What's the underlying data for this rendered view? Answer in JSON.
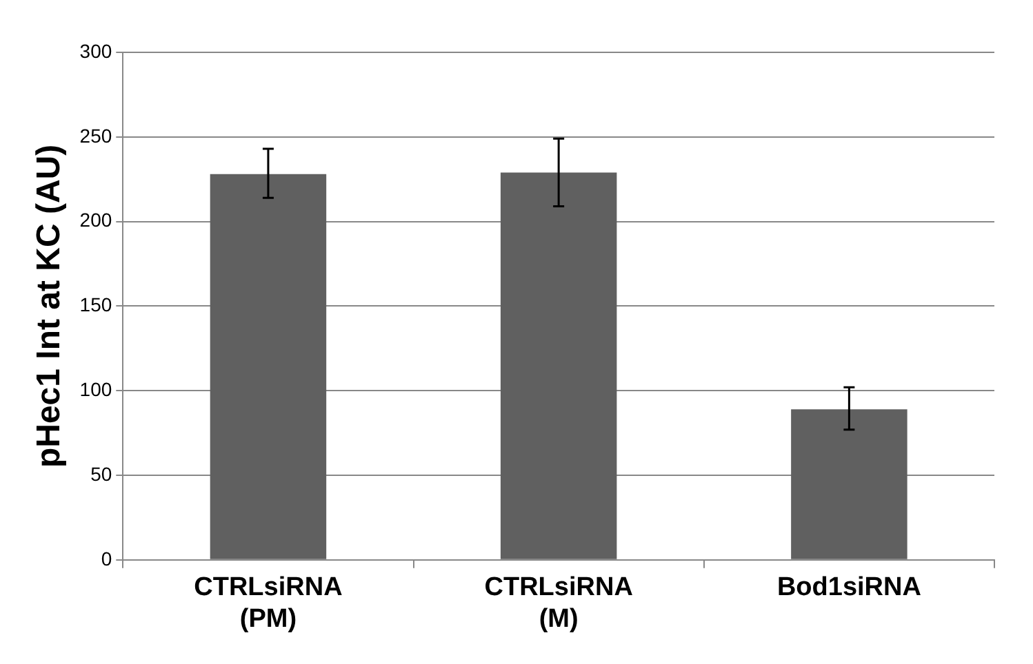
{
  "chart_data": {
    "type": "bar",
    "ylabel": "pHec1 Int at KC (AU)",
    "categories": [
      "CTRLsiRNA (PM)",
      "CTRLsiRNA (M)",
      "Bod1siRNA"
    ],
    "values": [
      228,
      229,
      89
    ],
    "color": "#606060",
    "errors": [
      [
        214,
        243
      ],
      [
        209,
        249
      ],
      [
        77,
        102
      ]
    ],
    "ylim": [
      0,
      300
    ],
    "yticks": [
      0,
      50,
      100,
      150,
      200,
      250,
      300
    ],
    "grid": "y",
    "legend": false
  }
}
